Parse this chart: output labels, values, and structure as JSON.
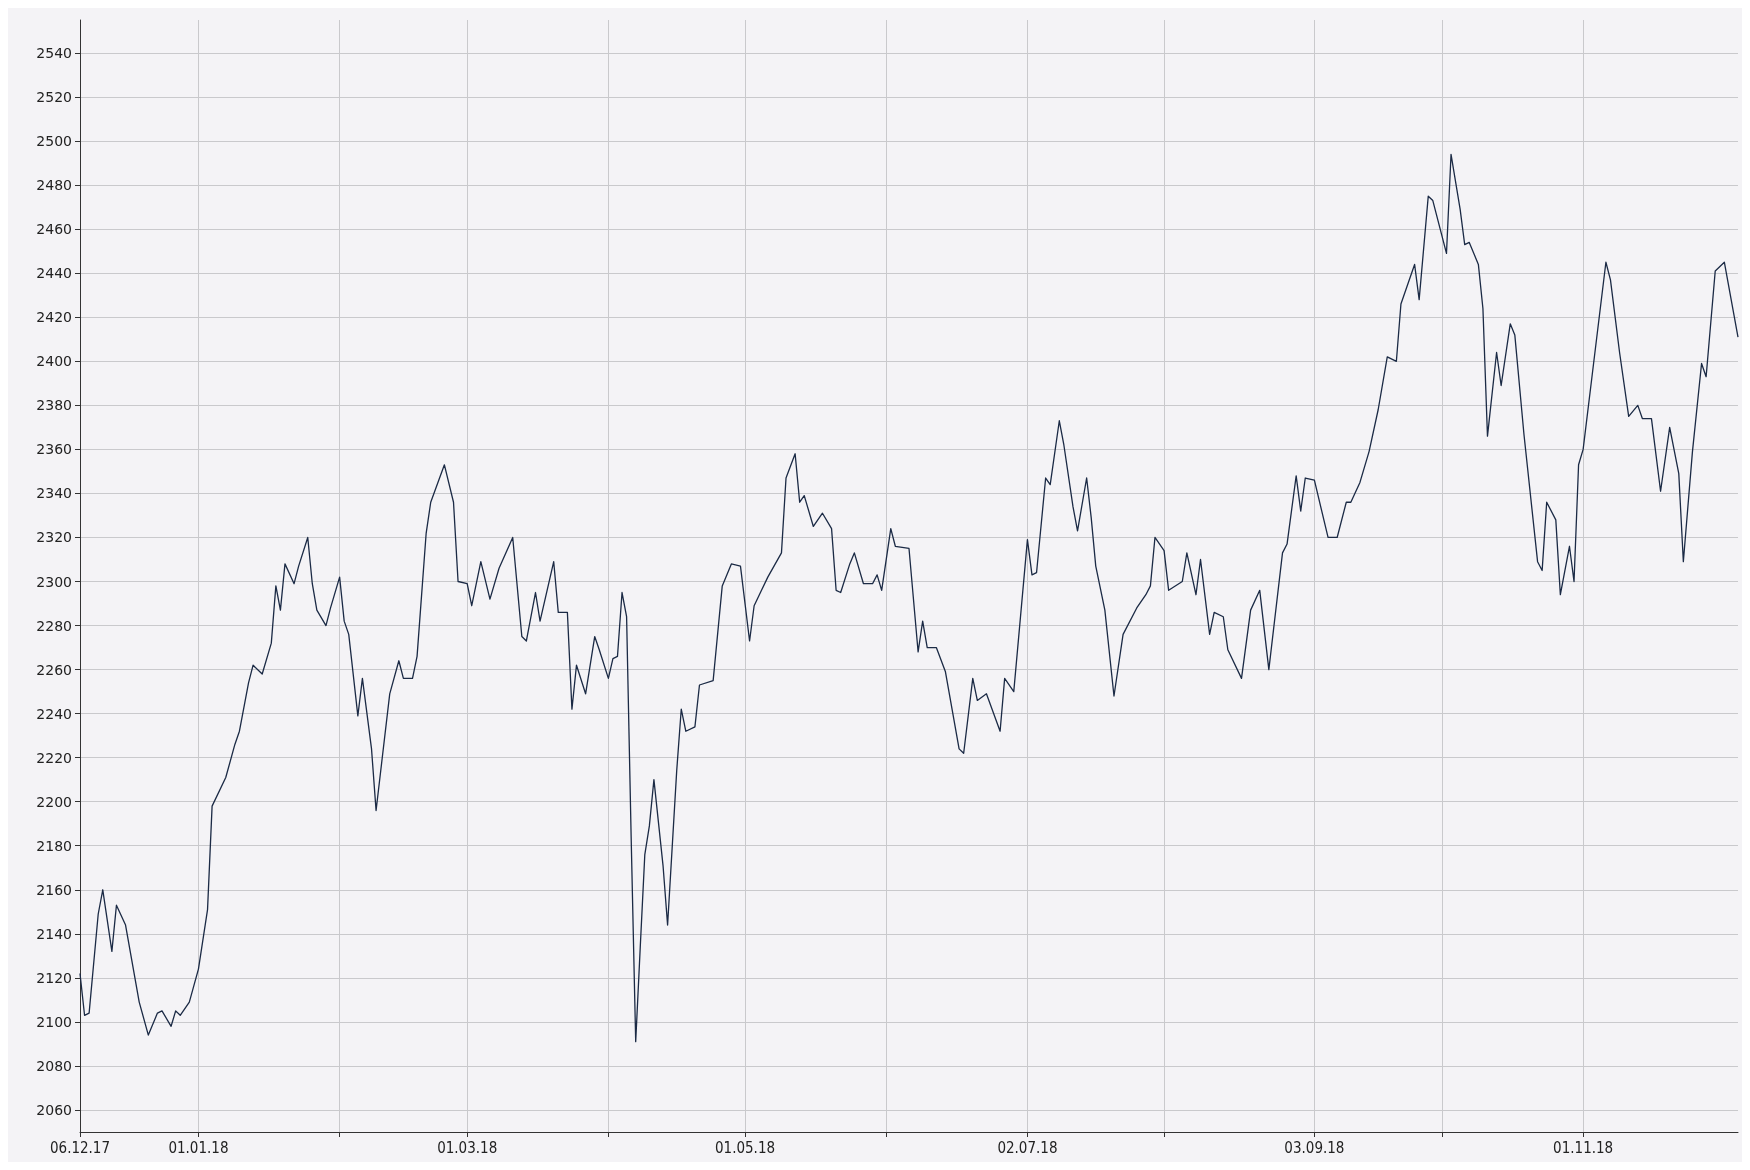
{
  "chart_data": {
    "type": "line",
    "x": [
      "2017-12-06",
      "2017-12-07",
      "2017-12-08",
      "2017-12-10",
      "2017-12-11",
      "2017-12-13",
      "2017-12-14",
      "2017-12-16",
      "2017-12-19",
      "2017-12-21",
      "2017-12-23",
      "2017-12-24",
      "2017-12-26",
      "2017-12-27",
      "2017-12-28",
      "2017-12-30",
      "2018-01-01",
      "2018-01-03",
      "2018-01-04",
      "2018-01-07",
      "2018-01-09",
      "2018-01-10",
      "2018-01-12",
      "2018-01-13",
      "2018-01-15",
      "2018-01-17",
      "2018-01-18",
      "2018-01-19",
      "2018-01-20",
      "2018-01-22",
      "2018-01-23",
      "2018-01-25",
      "2018-01-26",
      "2018-01-27",
      "2018-01-29",
      "2018-01-30",
      "2018-02-01",
      "2018-02-02",
      "2018-02-03",
      "2018-02-05",
      "2018-02-06",
      "2018-02-08",
      "2018-02-09",
      "2018-02-12",
      "2018-02-14",
      "2018-02-15",
      "2018-02-17",
      "2018-02-18",
      "2018-02-20",
      "2018-02-21",
      "2018-02-24",
      "2018-02-26",
      "2018-02-27",
      "2018-03-01",
      "2018-03-02",
      "2018-03-04",
      "2018-03-06",
      "2018-03-08",
      "2018-03-11",
      "2018-03-13",
      "2018-03-14",
      "2018-03-16",
      "2018-03-17",
      "2018-03-20",
      "2018-03-21",
      "2018-03-23",
      "2018-03-24",
      "2018-03-25",
      "2018-03-27",
      "2018-03-29",
      "2018-03-30",
      "2018-04-01",
      "2018-04-02",
      "2018-04-03",
      "2018-04-04",
      "2018-04-05",
      "2018-04-06",
      "2018-04-07",
      "2018-04-08",
      "2018-04-09",
      "2018-04-10",
      "2018-04-11",
      "2018-04-13",
      "2018-04-14",
      "2018-04-16",
      "2018-04-17",
      "2018-04-18",
      "2018-04-20",
      "2018-04-21",
      "2018-04-24",
      "2018-04-26",
      "2018-04-28",
      "2018-04-30",
      "2018-05-02",
      "2018-05-03",
      "2018-05-06",
      "2018-05-09",
      "2018-05-10",
      "2018-05-12",
      "2018-05-13",
      "2018-05-14",
      "2018-05-16",
      "2018-05-18",
      "2018-05-20",
      "2018-05-21",
      "2018-05-22",
      "2018-05-24",
      "2018-05-25",
      "2018-05-27",
      "2018-05-29",
      "2018-05-30",
      "2018-05-31",
      "2018-06-02",
      "2018-06-03",
      "2018-06-06",
      "2018-06-08",
      "2018-06-09",
      "2018-06-10",
      "2018-06-12",
      "2018-06-14",
      "2018-06-17",
      "2018-06-18",
      "2018-06-20",
      "2018-06-21",
      "2018-06-23",
      "2018-06-26",
      "2018-06-27",
      "2018-06-29",
      "2018-07-02",
      "2018-07-03",
      "2018-07-04",
      "2018-07-06",
      "2018-07-07",
      "2018-07-09",
      "2018-07-10",
      "2018-07-12",
      "2018-07-13",
      "2018-07-15",
      "2018-07-16",
      "2018-07-17",
      "2018-07-19",
      "2018-07-21",
      "2018-07-23",
      "2018-07-26",
      "2018-07-28",
      "2018-07-29",
      "2018-07-30",
      "2018-08-01",
      "2018-08-02",
      "2018-08-05",
      "2018-08-06",
      "2018-08-08",
      "2018-08-09",
      "2018-08-11",
      "2018-08-12",
      "2018-08-14",
      "2018-08-15",
      "2018-08-18",
      "2018-08-20",
      "2018-08-22",
      "2018-08-24",
      "2018-08-27",
      "2018-08-28",
      "2018-08-30",
      "2018-08-31",
      "2018-09-01",
      "2018-09-03",
      "2018-09-06",
      "2018-09-08",
      "2018-09-10",
      "2018-09-11",
      "2018-09-13",
      "2018-09-15",
      "2018-09-17",
      "2018-09-19",
      "2018-09-21",
      "2018-09-22",
      "2018-09-25",
      "2018-09-26",
      "2018-09-28",
      "2018-09-29",
      "2018-10-02",
      "2018-10-03",
      "2018-10-05",
      "2018-10-06",
      "2018-10-07",
      "2018-10-09",
      "2018-10-10",
      "2018-10-11",
      "2018-10-13",
      "2018-10-14",
      "2018-10-16",
      "2018-10-17",
      "2018-10-19",
      "2018-10-22",
      "2018-10-23",
      "2018-10-24",
      "2018-10-26",
      "2018-10-27",
      "2018-10-29",
      "2018-10-30",
      "2018-10-31",
      "2018-11-01",
      "2018-11-03",
      "2018-11-06",
      "2018-11-07",
      "2018-11-09",
      "2018-11-11",
      "2018-11-13",
      "2018-11-14",
      "2018-11-16",
      "2018-11-18",
      "2018-11-20",
      "2018-11-22",
      "2018-11-23",
      "2018-11-25",
      "2018-11-27",
      "2018-11-28",
      "2018-11-30",
      "2018-12-02",
      "2018-12-05"
    ],
    "series": [
      {
        "color": "#1b2a45",
        "values": [
          2122,
          2103,
          2104,
          2149,
          2160,
          2132,
          2153,
          2144,
          2109,
          2094,
          2104,
          2105,
          2098,
          2105,
          2103,
          2109,
          2124,
          2151,
          2198,
          2211,
          2226,
          2232,
          2254,
          2262,
          2258,
          2272,
          2298,
          2287,
          2308,
          2299,
          2307,
          2320,
          2299,
          2287,
          2280,
          2288,
          2302,
          2282,
          2276,
          2239,
          2256,
          2224,
          2196,
          2249,
          2264,
          2256,
          2256,
          2266,
          2322,
          2336,
          2353,
          2336,
          2300,
          2299,
          2289,
          2309,
          2292,
          2306,
          2320,
          2275,
          2273,
          2295,
          2282,
          2309,
          2286,
          2286,
          2242,
          2262,
          2249,
          2275,
          2269,
          2256,
          2265,
          2266,
          2295,
          2284,
          2184,
          2091,
          2134,
          2176,
          2189,
          2210,
          2171,
          2144,
          2214,
          2242,
          2232,
          2234,
          2253,
          2255,
          2298,
          2308,
          2307,
          2273,
          2289,
          2302,
          2313,
          2347,
          2358,
          2336,
          2339,
          2325,
          2331,
          2324,
          2296,
          2295,
          2308,
          2313,
          2299,
          2299,
          2303,
          2296,
          2324,
          2316,
          2315,
          2268,
          2282,
          2270,
          2270,
          2259,
          2224,
          2222,
          2256,
          2246,
          2249,
          2232,
          2256,
          2250,
          2319,
          2303,
          2304,
          2347,
          2344,
          2373,
          2362,
          2334,
          2323,
          2347,
          2329,
          2307,
          2287,
          2248,
          2276,
          2288,
          2294,
          2298,
          2320,
          2314,
          2296,
          2300,
          2313,
          2294,
          2310,
          2276,
          2286,
          2284,
          2269,
          2256,
          2287,
          2296,
          2260,
          2313,
          2317,
          2348,
          2332,
          2347,
          2346,
          2320,
          2320,
          2336,
          2336,
          2345,
          2359,
          2378,
          2402,
          2400,
          2426,
          2444,
          2428,
          2475,
          2473,
          2449,
          2494,
          2469,
          2453,
          2454,
          2444,
          2424,
          2366,
          2404,
          2389,
          2417,
          2412,
          2367,
          2309,
          2305,
          2336,
          2328,
          2294,
          2316,
          2300,
          2353,
          2360,
          2394,
          2445,
          2437,
          2404,
          2375,
          2380,
          2374,
          2374,
          2341,
          2370,
          2349,
          2309,
          2359,
          2399,
          2393,
          2441,
          2445,
          2411
        ]
      }
    ],
    "xlim": [
      "2017-12-06",
      "2018-12-05"
    ],
    "xticks": [
      {
        "value": "2017-12-06",
        "label": "06.12.17"
      },
      {
        "value": "2018-01-01",
        "label": "01.01.18"
      },
      {
        "value": "2018-02-01",
        "label": null
      },
      {
        "value": "2018-03-01",
        "label": "01.03.18"
      },
      {
        "value": "2018-04-01",
        "label": null
      },
      {
        "value": "2018-05-01",
        "label": "01.05.18"
      },
      {
        "value": "2018-06-01",
        "label": null
      },
      {
        "value": "2018-07-02",
        "label": "02.07.18"
      },
      {
        "value": "2018-08-01",
        "label": null
      },
      {
        "value": "2018-09-03",
        "label": "03.09.18"
      },
      {
        "value": "2018-10-01",
        "label": null
      },
      {
        "value": "2018-11-01",
        "label": "01.11.18"
      }
    ],
    "ylim": [
      2050,
      2555
    ],
    "yticks": [
      2060,
      2080,
      2100,
      2120,
      2140,
      2160,
      2180,
      2200,
      2220,
      2240,
      2260,
      2280,
      2300,
      2320,
      2340,
      2360,
      2380,
      2400,
      2420,
      2440,
      2460,
      2480,
      2500,
      2520,
      2540
    ],
    "grid": true,
    "marker": "none",
    "line_style": "solid"
  }
}
